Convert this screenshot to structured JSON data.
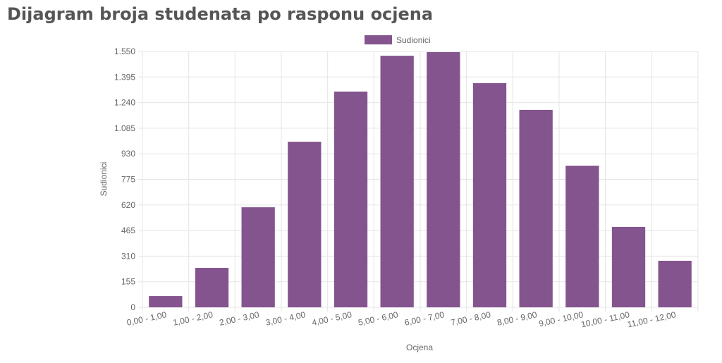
{
  "chart_data": {
    "type": "bar",
    "title": "Dijagram broja studenata po rasponu ocjena",
    "x_label": "Ocjena",
    "y_label": "Sudionici",
    "categories": [
      "0,00 - 1,00",
      "1,00 - 2,00",
      "2,00 - 3,00",
      "3,00 - 4,00",
      "4,00 - 5,00",
      "5,00 - 6,00",
      "6,00 - 7,00",
      "7,00 - 8,00",
      "8,00 - 9,00",
      "9,00 - 10,00",
      "10,00 - 11,00",
      "11,00 - 12,00"
    ],
    "series": [
      {
        "name": "Sudionici",
        "color": "#84548f",
        "values": [
          68,
          239,
          606,
          1003,
          1307,
          1524,
          1546,
          1358,
          1196,
          858,
          487,
          282
        ]
      }
    ],
    "ylim": [
      0,
      1550
    ],
    "yticks": [
      0,
      155,
      310,
      465,
      620,
      775,
      930,
      {
        "value": 1085,
        "label": "1.085"
      },
      {
        "value": 1240,
        "label": "1.240"
      },
      {
        "value": 1395,
        "label": "1.395"
      },
      {
        "value": 1550,
        "label": "1.550"
      }
    ],
    "grid": true,
    "legend": "top"
  }
}
